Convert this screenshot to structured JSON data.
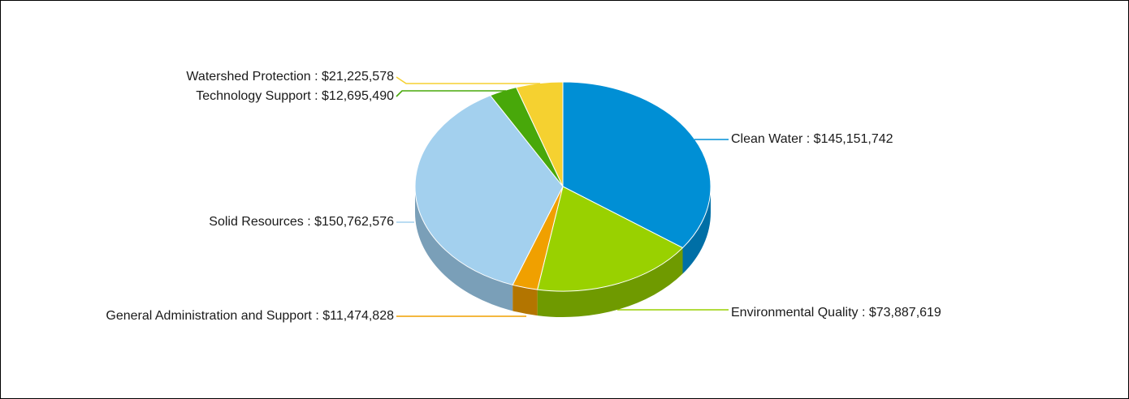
{
  "chart_data": {
    "type": "pie",
    "style": "3d",
    "slices": [
      {
        "label": "Clean Water",
        "value": 145151742,
        "display_value": "$145,151,742",
        "color": "#008fd5",
        "side_color": "#006fa6"
      },
      {
        "label": "Environmental Quality",
        "value": 73887619,
        "display_value": "$73,887,619",
        "color": "#99d100",
        "side_color": "#6f9a00"
      },
      {
        "label": "General Administration and Support",
        "value": 11474828,
        "display_value": "$11,474,828",
        "color": "#f0a000",
        "side_color": "#b37500"
      },
      {
        "label": "Solid Resources",
        "value": 150762576,
        "display_value": "$150,762,576",
        "color": "#a3d0ee",
        "side_color": "#7a9fb8"
      },
      {
        "label": "Technology Support",
        "value": 12695490,
        "display_value": "$12,695,490",
        "color": "#48a80a",
        "side_color": "#357d07"
      },
      {
        "label": "Watershed Protection",
        "value": 21225578,
        "display_value": "$21,225,578",
        "color": "#f5d130",
        "side_color": "#c0a020"
      }
    ],
    "label_separator": " : "
  }
}
